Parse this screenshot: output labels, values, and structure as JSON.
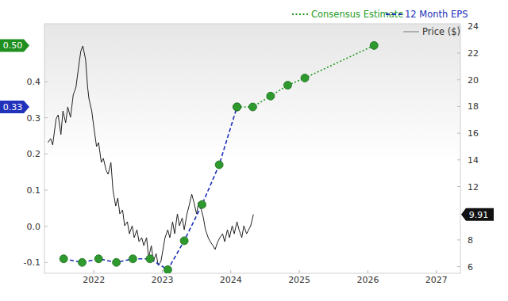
{
  "chart_data": {
    "type": "line",
    "xlim": [
      2021.28,
      2027.35
    ],
    "xticks": [
      2022,
      2023,
      2024,
      2025,
      2026,
      2027
    ],
    "ylim": [
      -0.13,
      0.56
    ],
    "yticks": [
      -0.1,
      {
        "value": 0,
        "label": "0.0"
      },
      0.1,
      0.2,
      0.3,
      0.4
    ],
    "y2lim": [
      5.5,
      24.2
    ],
    "y2ticks": [
      6,
      8,
      12,
      14,
      16,
      18,
      20,
      22,
      24
    ],
    "grid": false,
    "legend": "top-right",
    "series": [
      {
        "name": "Consensus Estimate",
        "color": "#1f9a1f",
        "line_style": "dotted",
        "marker": "circle",
        "x": [
          2024.09,
          2024.32,
          2024.58,
          2024.83,
          2025.08,
          2026.09
        ],
        "values": [
          0.33,
          0.33,
          0.36,
          0.39,
          0.41,
          0.5
        ]
      },
      {
        "name": "12 Month EPS",
        "color": "#1a2fb8",
        "line_style": "dashed",
        "marker": "circle",
        "x": [
          2021.56,
          2021.83,
          2022.07,
          2022.33,
          2022.57,
          2022.82,
          2023.08,
          2023.32,
          2023.58,
          2023.83,
          2024.09
        ],
        "values": [
          -0.09,
          -0.1,
          -0.09,
          -0.1,
          -0.09,
          -0.09,
          -0.12,
          -0.04,
          0.06,
          0.17,
          0.33
        ]
      },
      {
        "name": "Price ($)",
        "color": "#222222",
        "line_style": "solid",
        "axis": "y2",
        "x": [
          2021.33,
          2021.37,
          2021.4,
          2021.45,
          2021.48,
          2021.52,
          2021.55,
          2021.59,
          2021.62,
          2021.66,
          2021.7,
          2021.74,
          2021.77,
          2021.81,
          2021.84,
          2021.88,
          2021.91,
          2021.93,
          2021.97,
          2022.0,
          2022.04,
          2022.07,
          2022.11,
          2022.14,
          2022.18,
          2022.21,
          2022.25,
          2022.28,
          2022.32,
          2022.35,
          2022.38,
          2022.42,
          2022.45,
          2022.49,
          2022.52,
          2022.56,
          2022.59,
          2022.63,
          2022.66,
          2022.7,
          2022.73,
          2022.77,
          2022.8,
          2022.84,
          2022.87,
          2022.91,
          2022.94,
          2022.98,
          2023.01,
          2023.04,
          2023.08,
          2023.11,
          2023.15,
          2023.18,
          2023.22,
          2023.25,
          2023.29,
          2023.32,
          2023.36,
          2023.39,
          2023.43,
          2023.46,
          2023.5,
          2023.53,
          2023.57,
          2023.6,
          2023.63,
          2023.67,
          2023.7,
          2023.74,
          2023.77,
          2023.81,
          2023.84,
          2023.88,
          2023.91,
          2023.95,
          2023.98,
          2024.02,
          2024.05,
          2024.09,
          2024.12,
          2024.16,
          2024.19,
          2024.23,
          2024.26,
          2024.29,
          2024.33
        ],
        "values": [
          15.29,
          15.59,
          15.12,
          17.07,
          17.37,
          15.89,
          17.67,
          16.78,
          17.97,
          17.19,
          18.86,
          19.45,
          20.64,
          22.13,
          22.54,
          21.53,
          19.45,
          18.56,
          17.67,
          16.48,
          15.0,
          15.29,
          13.81,
          14.11,
          13.22,
          12.92,
          13.81,
          11.73,
          10.54,
          11.14,
          9.95,
          10.25,
          9.06,
          9.36,
          8.46,
          9.06,
          8.17,
          8.76,
          7.87,
          8.17,
          7.57,
          8.17,
          6.68,
          7.57,
          6.39,
          6.98,
          6.09,
          6.39,
          7.28,
          8.17,
          8.76,
          8.17,
          9.36,
          8.46,
          9.95,
          9.06,
          9.65,
          8.76,
          9.95,
          10.54,
          11.43,
          10.84,
          9.95,
          10.84,
          10.25,
          9.65,
          8.76,
          8.17,
          7.87,
          7.57,
          7.28,
          7.87,
          8.17,
          8.46,
          7.87,
          8.76,
          8.17,
          9.06,
          8.46,
          9.36,
          8.76,
          8.17,
          9.06,
          8.46,
          8.76,
          9.06,
          9.91
        ]
      }
    ],
    "annotations": [
      {
        "text": "0.50",
        "value": 0.5,
        "axis": "y",
        "color": "#1f8f1f"
      },
      {
        "text": "0.33",
        "value": 0.33,
        "axis": "y",
        "color": "#2233bb"
      },
      {
        "text": "9.91",
        "value": 9.91,
        "axis": "y2",
        "color": "#111111"
      }
    ]
  }
}
